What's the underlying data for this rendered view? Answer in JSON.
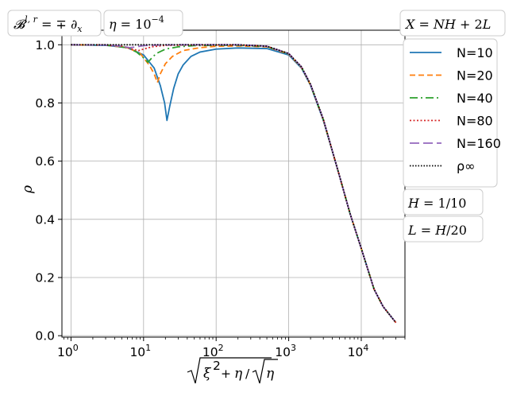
{
  "chart_data": {
    "type": "line",
    "xscale": "log",
    "xlim": [
      0.75,
      40000
    ],
    "ylim": [
      -0.005,
      1.05
    ],
    "grid": true,
    "x_ticks": [
      {
        "value": 1,
        "base": "10",
        "exp": "0"
      },
      {
        "value": 10,
        "base": "10",
        "exp": "1"
      },
      {
        "value": 100,
        "base": "10",
        "exp": "2"
      },
      {
        "value": 1000,
        "base": "10",
        "exp": "3"
      },
      {
        "value": 10000,
        "base": "10",
        "exp": "4"
      }
    ],
    "y_ticks": [
      {
        "value": 0.0,
        "label": "0.0"
      },
      {
        "value": 0.2,
        "label": "0.2"
      },
      {
        "value": 0.4,
        "label": "0.4"
      },
      {
        "value": 0.6,
        "label": "0.6"
      },
      {
        "value": 0.8,
        "label": "0.8"
      },
      {
        "value": 1.0,
        "label": "1.0"
      }
    ],
    "xlabel": "√(ξ² + η)/√η",
    "ylabel": "ρ",
    "title_boxes": [
      "𝓑^{l,r} = ∓∂_x",
      "η = 10^{−4}"
    ],
    "right_boxes": [
      "X = NH + 2L",
      "H = 1/10",
      "L = H/20"
    ],
    "legend_position": "upper right (outside)",
    "series": [
      {
        "name": "N=10",
        "color": "#1f77b4",
        "dash": "",
        "x": [
          1,
          3,
          6,
          10,
          14,
          17,
          19.5,
          21,
          23,
          26,
          30,
          35,
          45,
          60,
          100,
          200,
          500,
          1000,
          1500,
          2000,
          3000,
          5000,
          7000,
          10000,
          15000,
          20000,
          30000
        ],
        "y": [
          1.0,
          0.998,
          0.99,
          0.965,
          0.92,
          0.86,
          0.8,
          0.74,
          0.79,
          0.85,
          0.9,
          0.93,
          0.96,
          0.975,
          0.985,
          0.989,
          0.987,
          0.965,
          0.92,
          0.86,
          0.74,
          0.55,
          0.42,
          0.3,
          0.16,
          0.1,
          0.045
        ]
      },
      {
        "name": "N=20",
        "color": "#ff7f0e",
        "dash": "7,4",
        "x": [
          1,
          3,
          6,
          9,
          12,
          14,
          15.5,
          17,
          20,
          25,
          35,
          60,
          100,
          200,
          500,
          1000,
          1500,
          2000,
          3000,
          5000,
          7000,
          10000,
          15000,
          20000,
          30000
        ],
        "y": [
          1.0,
          0.999,
          0.99,
          0.97,
          0.93,
          0.9,
          0.87,
          0.9,
          0.935,
          0.96,
          0.98,
          0.99,
          0.995,
          0.996,
          0.993,
          0.968,
          0.922,
          0.862,
          0.742,
          0.55,
          0.42,
          0.3,
          0.16,
          0.1,
          0.045
        ]
      },
      {
        "name": "N=40",
        "color": "#2ca02c",
        "dash": "10,4,2,4",
        "x": [
          1,
          3,
          6,
          8,
          10,
          11.5,
          13,
          15,
          20,
          30,
          50,
          100,
          200,
          500,
          1000,
          1500,
          2000,
          3000,
          5000,
          7000,
          10000,
          15000,
          20000,
          30000
        ],
        "y": [
          1.0,
          0.999,
          0.99,
          0.975,
          0.955,
          0.94,
          0.955,
          0.97,
          0.985,
          0.993,
          0.997,
          0.998,
          0.998,
          0.994,
          0.969,
          0.923,
          0.863,
          0.743,
          0.55,
          0.42,
          0.3,
          0.16,
          0.1,
          0.045
        ]
      },
      {
        "name": "N=80",
        "color": "#d62728",
        "dash": "2,2.5",
        "x": [
          1,
          3,
          5,
          7,
          8.5,
          10,
          13,
          20,
          40,
          100,
          200,
          500,
          1000,
          1500,
          2000,
          3000,
          5000,
          7000,
          10000,
          15000,
          20000,
          30000
        ],
        "y": [
          1.0,
          0.999,
          0.995,
          0.985,
          0.98,
          0.985,
          0.993,
          0.998,
          0.999,
          0.999,
          0.999,
          0.995,
          0.97,
          0.924,
          0.864,
          0.744,
          0.55,
          0.42,
          0.3,
          0.16,
          0.1,
          0.045
        ]
      },
      {
        "name": "N=160",
        "color": "#9467bd",
        "dash": "12,5",
        "x": [
          1,
          3,
          5,
          6.5,
          8,
          10,
          15,
          30,
          100,
          200,
          500,
          1000,
          1500,
          2000,
          3000,
          5000,
          7000,
          10000,
          15000,
          20000,
          30000
        ],
        "y": [
          1.0,
          0.999,
          0.995,
          0.99,
          0.993,
          0.997,
          0.999,
          1.0,
          1.0,
          1.0,
          0.995,
          0.97,
          0.924,
          0.864,
          0.744,
          0.55,
          0.42,
          0.3,
          0.16,
          0.1,
          0.045
        ]
      },
      {
        "name": "ρ∞",
        "color": "#000000",
        "dash": "1.5,2",
        "x": [
          1,
          10,
          100,
          200,
          500,
          1000,
          1500,
          2000,
          3000,
          5000,
          7000,
          10000,
          15000,
          20000,
          30000
        ],
        "y": [
          1.0,
          1.0,
          1.0,
          1.0,
          0.995,
          0.97,
          0.924,
          0.864,
          0.744,
          0.55,
          0.42,
          0.3,
          0.16,
          0.1,
          0.045
        ]
      }
    ]
  }
}
